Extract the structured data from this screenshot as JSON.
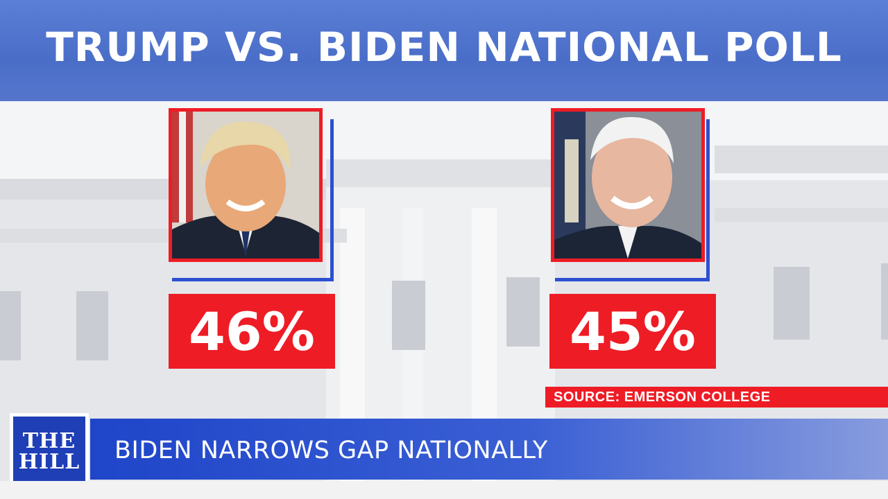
{
  "header": {
    "title": "TRUMP VS. BIDEN NATIONAL POLL"
  },
  "candidates": [
    {
      "name": "Trump",
      "percent_label": "46%",
      "percent": 46
    },
    {
      "name": "Biden",
      "percent_label": "45%",
      "percent": 45
    }
  ],
  "source": "SOURCE: EMERSON COLLEGE",
  "lower_third": {
    "logo_line1": "THE",
    "logo_line2": "HILL",
    "headline": "BIDEN NARROWS GAP NATIONALLY"
  },
  "colors": {
    "red": "#ee1c25",
    "blue": "#2c4fd2",
    "header_blue": "#4a6ec8",
    "logo_blue": "#1f3fb6"
  }
}
